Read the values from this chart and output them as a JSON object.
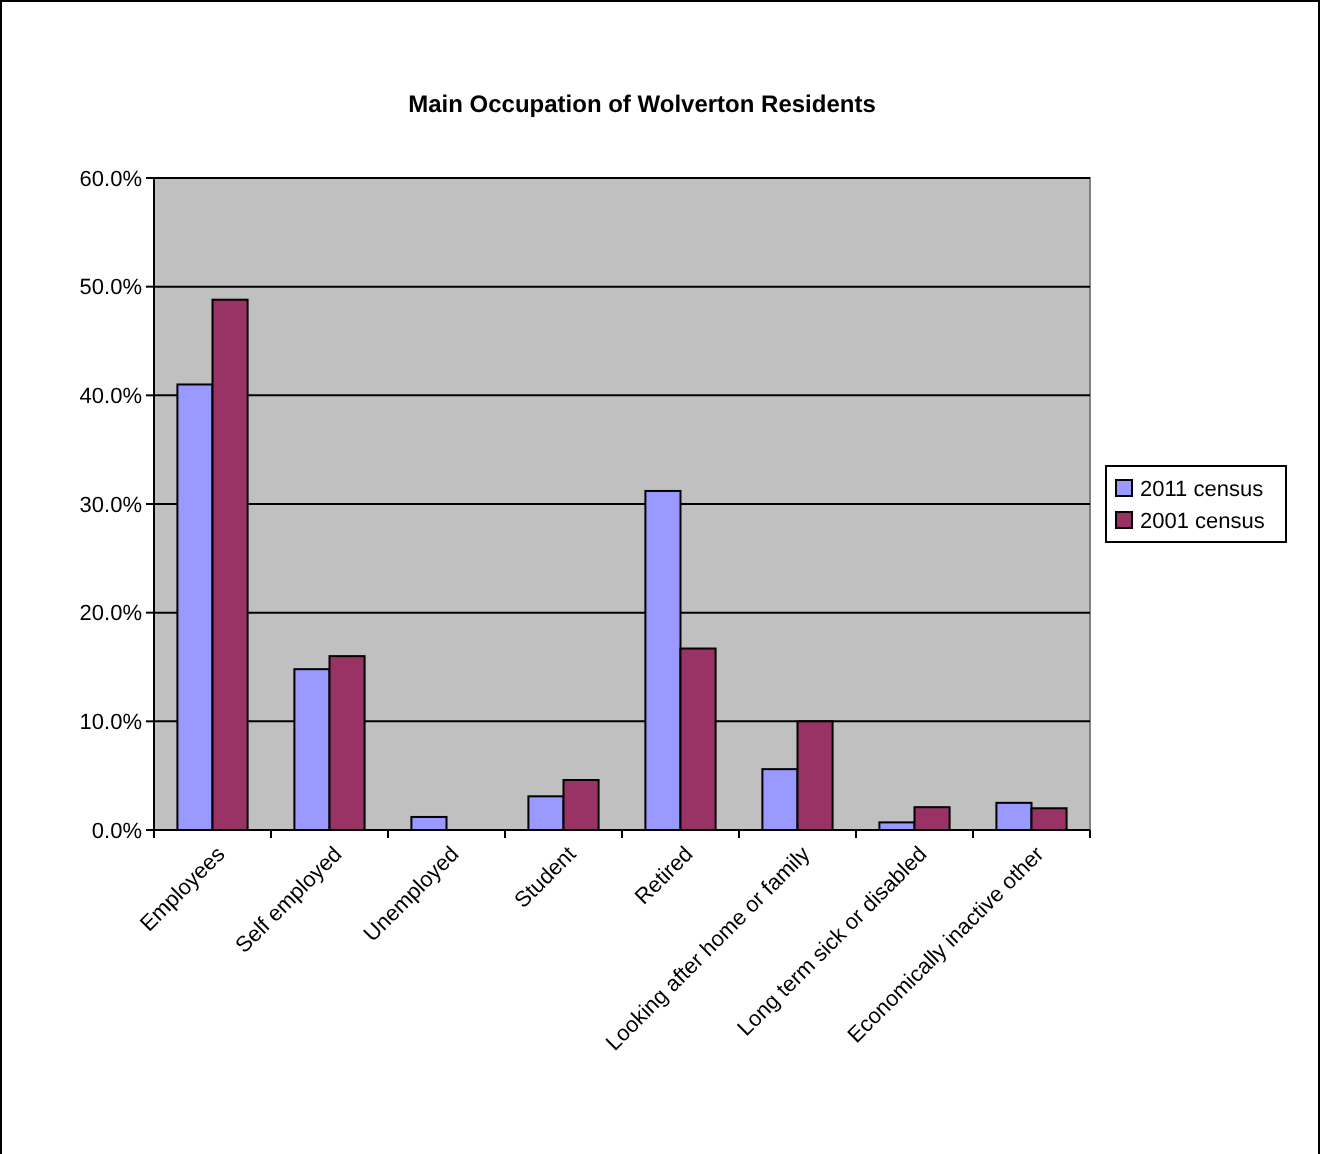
{
  "chart_data": {
    "type": "bar",
    "title": "Main Occupation of Wolverton Residents",
    "categories": [
      "Employees",
      "Self employed",
      "Unemployed",
      "Student",
      "Retired",
      "Looking after home or family",
      "Long term sick or disabled",
      "Economically inactive other"
    ],
    "series": [
      {
        "name": "2011 census",
        "color": "#9999ff",
        "values": [
          41.0,
          14.8,
          1.2,
          3.1,
          31.2,
          5.6,
          0.7,
          2.5
        ]
      },
      {
        "name": "2001 census",
        "color": "#993366",
        "values": [
          48.8,
          16.0,
          0,
          4.6,
          16.7,
          10.0,
          2.1,
          2.0
        ]
      }
    ],
    "ylim": [
      0,
      60
    ],
    "yticks": [
      {
        "value": 0,
        "label": "0.0%"
      },
      {
        "value": 10,
        "label": "10.0%"
      },
      {
        "value": 20,
        "label": "20.0%"
      },
      {
        "value": 30,
        "label": "30.0%"
      },
      {
        "value": 40,
        "label": "40.0%"
      },
      {
        "value": 50,
        "label": "50.0%"
      },
      {
        "value": 60,
        "label": "60.0%"
      }
    ],
    "grid": "y",
    "legend": "right"
  }
}
